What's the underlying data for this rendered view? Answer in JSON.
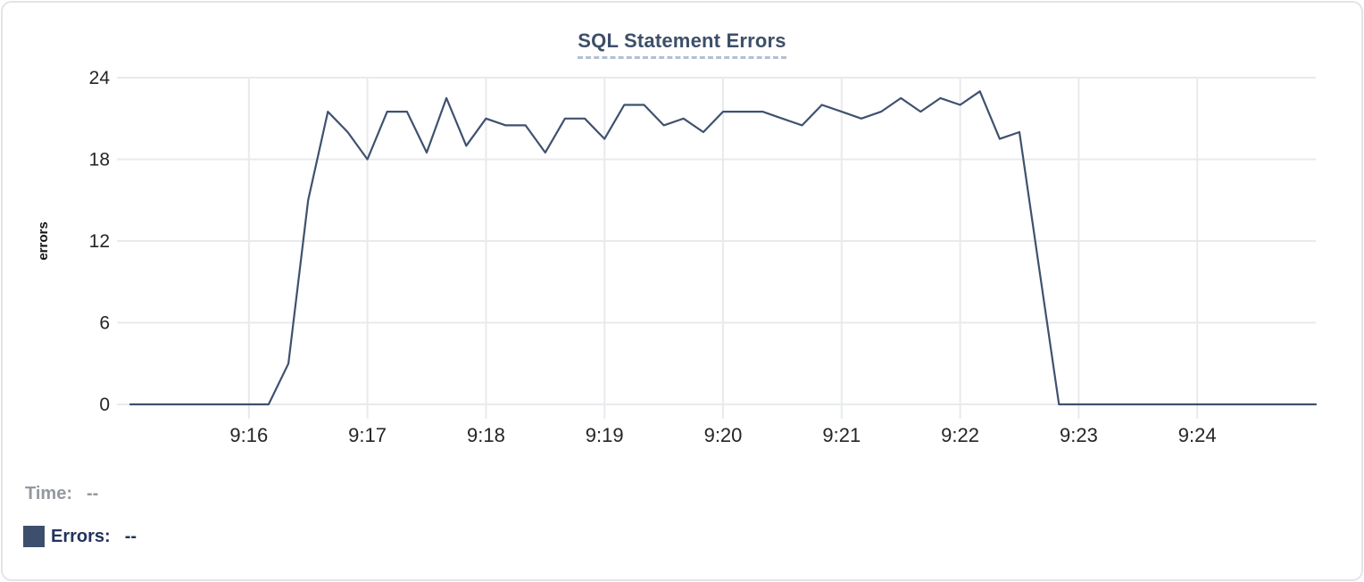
{
  "chart_data": {
    "type": "line",
    "title": "SQL Statement Errors",
    "xlabel": "",
    "ylabel": "errors",
    "ylim": [
      0,
      24
    ],
    "y_ticks": [
      0,
      6,
      12,
      18,
      24
    ],
    "x_tick_labels": [
      "9:16",
      "9:17",
      "9:18",
      "9:19",
      "9:20",
      "9:21",
      "9:22",
      "9:23",
      "9:24"
    ],
    "grid": true,
    "legend_position": "bottom-left",
    "series_name": "Errors",
    "line_color": "#3f516f",
    "x": [
      "9:15:00",
      "9:15:10",
      "9:15:20",
      "9:15:30",
      "9:15:40",
      "9:15:50",
      "9:16:00",
      "9:16:10",
      "9:16:20",
      "9:16:30",
      "9:16:40",
      "9:16:50",
      "9:17:00",
      "9:17:10",
      "9:17:20",
      "9:17:30",
      "9:17:40",
      "9:17:50",
      "9:18:00",
      "9:18:10",
      "9:18:20",
      "9:18:30",
      "9:18:40",
      "9:18:50",
      "9:19:00",
      "9:19:10",
      "9:19:20",
      "9:19:30",
      "9:19:40",
      "9:19:50",
      "9:20:00",
      "9:20:10",
      "9:20:20",
      "9:20:30",
      "9:20:40",
      "9:20:50",
      "9:21:00",
      "9:21:10",
      "9:21:20",
      "9:21:30",
      "9:21:40",
      "9:21:50",
      "9:22:00",
      "9:22:10",
      "9:22:20",
      "9:22:30",
      "9:22:40",
      "9:22:50",
      "9:23:00",
      "9:23:10",
      "9:23:20",
      "9:23:30",
      "9:23:40",
      "9:23:50",
      "9:24:00",
      "9:24:10",
      "9:24:20",
      "9:24:30",
      "9:24:40",
      "9:24:50",
      "9:25:00"
    ],
    "values": [
      0,
      0,
      0,
      0,
      0,
      0,
      0,
      0,
      3,
      15,
      21.5,
      20,
      18,
      21.5,
      21.5,
      18.5,
      22.5,
      19,
      21,
      20.5,
      20.5,
      18.5,
      21,
      21,
      19.5,
      22,
      22,
      20.5,
      21,
      20,
      21.5,
      21.5,
      21.5,
      21,
      20.5,
      22,
      21.5,
      21,
      21.5,
      22.5,
      21.5,
      22.5,
      22,
      23,
      19.5,
      20,
      10,
      0,
      0,
      0,
      0,
      0,
      0,
      0,
      0,
      0,
      0,
      0,
      0,
      0,
      0
    ]
  },
  "legend": {
    "time_label": "Time:",
    "time_value": "--",
    "errors_label": "Errors:",
    "errors_value": "--",
    "swatch_color": "#3d4f6c"
  },
  "colors": {
    "grid": "#e8eaec",
    "tick_text": "#232527",
    "axis_label": "#121314",
    "title": "#3d4f68",
    "time_text": "#94989f",
    "errors_text": "#22335c"
  }
}
